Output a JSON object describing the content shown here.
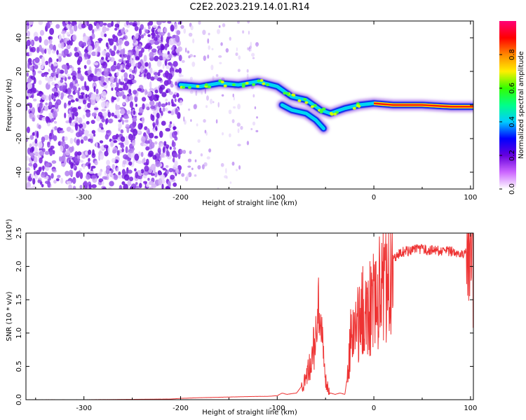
{
  "title": "C2E2.2023.219.14.01.R14",
  "colors": {
    "snr_line": "#ee3333",
    "axis": "#000000",
    "blob": "#7a1fe0"
  },
  "chart_data": [
    {
      "type": "heatmap",
      "xlabel": "Height of straight line (km)",
      "ylabel": "Frequency (Hz)",
      "xlim": [
        -360,
        103
      ],
      "ylim": [
        -50,
        50
      ],
      "x_ticks": [
        "-300",
        "-200",
        "-100",
        "0",
        "100"
      ],
      "y_ticks": [
        "-40",
        "-20",
        "0",
        "20",
        "40"
      ],
      "colorbar": {
        "label": "Normalized spectral amplitude",
        "range": [
          0,
          1
        ],
        "ticks": [
          "0.0",
          "0.2",
          "0.4",
          "0.6",
          "0.8"
        ],
        "colormap": [
          "#ffffff",
          "#cc66ff",
          "#6600dd",
          "#0000ff",
          "#00ccff",
          "#00ff88",
          "#33ff00",
          "#ffee00",
          "#ff8800",
          "#ff0000",
          "#ff0077"
        ]
      },
      "signal_track": [
        {
          "x": -200,
          "y": 12
        },
        {
          "x": -180,
          "y": 11
        },
        {
          "x": -160,
          "y": 13
        },
        {
          "x": -140,
          "y": 12
        },
        {
          "x": -120,
          "y": 14
        },
        {
          "x": -100,
          "y": 11
        },
        {
          "x": -85,
          "y": 5
        },
        {
          "x": -70,
          "y": 3
        },
        {
          "x": -55,
          "y": -3
        },
        {
          "x": -45,
          "y": -5
        },
        {
          "x": -30,
          "y": -2
        },
        {
          "x": -15,
          "y": 0
        },
        {
          "x": 0,
          "y": 1
        },
        {
          "x": 20,
          "y": 0
        },
        {
          "x": 50,
          "y": 0
        },
        {
          "x": 80,
          "y": -1
        },
        {
          "x": 103,
          "y": -1
        }
      ],
      "branch_track": [
        {
          "x": -95,
          "y": 0
        },
        {
          "x": -85,
          "y": -3
        },
        {
          "x": -70,
          "y": -5
        },
        {
          "x": -60,
          "y": -9
        },
        {
          "x": -52,
          "y": -14
        }
      ]
    },
    {
      "type": "line",
      "xlabel": "Height of straight line (km)",
      "ylabel": "SNR (10 * v/v)",
      "y_multiplier": "(x10⁴)",
      "xlim": [
        -360,
        103
      ],
      "ylim": [
        0,
        2.5
      ],
      "x_ticks": [
        "-300",
        "-200",
        "-100",
        "0",
        "100"
      ],
      "y_ticks": [
        "0.0",
        "0.5",
        "1.0",
        "1.5",
        "2.0",
        "2.5"
      ],
      "series": [
        {
          "x": [
            -360,
            -300,
            -250,
            -210,
            -200,
            -180,
            -150,
            -120,
            -110,
            -100,
            -95,
            -90,
            -80,
            -70,
            -65,
            -60,
            -57,
            -55,
            -52,
            -50,
            -47,
            -45,
            -40,
            -35,
            -30,
            -26,
            -24,
            -20,
            -15,
            -10,
            -5,
            0,
            5,
            10,
            15,
            20,
            25,
            30,
            40,
            50,
            60,
            70,
            80,
            90,
            95,
            98,
            99,
            100,
            101,
            102,
            103
          ],
          "values": [
            0.0,
            0.0,
            0.005,
            0.01,
            0.02,
            0.03,
            0.04,
            0.05,
            0.05,
            0.06,
            0.1,
            0.08,
            0.1,
            0.3,
            0.6,
            0.9,
            1.3,
            1.0,
            0.6,
            0.3,
            0.15,
            0.1,
            0.08,
            0.1,
            0.08,
            0.5,
            0.9,
            1.0,
            1.2,
            1.35,
            1.4,
            1.5,
            1.6,
            1.75,
            1.95,
            2.1,
            2.18,
            2.22,
            2.25,
            2.25,
            2.24,
            2.23,
            2.22,
            2.21,
            2.2,
            2.2,
            1.5,
            2.5,
            1.4,
            2.3,
            2.2
          ]
        }
      ]
    }
  ]
}
